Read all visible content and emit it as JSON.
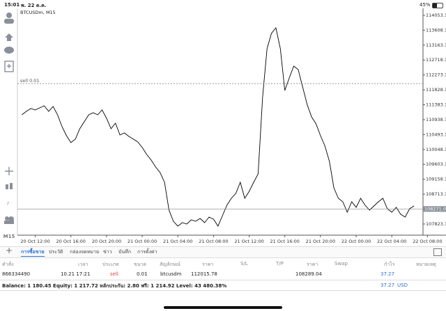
{
  "status_bar": {
    "time": "15:01",
    "date": "พ. 22 ต.ค.",
    "battery": "45%"
  },
  "toolbar": {
    "timeframe": "M15"
  },
  "chart": {
    "type": "line",
    "title": "BTCUSDm, M15",
    "color": "#000000",
    "values": [
      111083,
      111187,
      111270,
      111228,
      111291,
      111353,
      111187,
      111332,
      111083,
      110730,
      110460,
      110252,
      110356,
      110667,
      110875,
      111083,
      111145,
      111083,
      111228,
      110979,
      110667,
      110834,
      110481,
      110543,
      110439,
      110356,
      110273,
      110107,
      109899,
      109733,
      109525,
      109359,
      109068,
      108237,
      107905,
      107760,
      107864,
      107822,
      107947,
      107905,
      107988,
      107864,
      108030,
      107967,
      107760,
      108071,
      108383,
      108590,
      108736,
      109068,
      108590,
      108798,
      109068,
      109317,
      111602,
      113056,
      113513,
      113679,
      113056,
      111810,
      112184,
      112537,
      112433,
      111914,
      111394,
      111021,
      110813,
      110460,
      110148,
      109691,
      108902,
      108590,
      108487,
      108175,
      108487,
      108320,
      108590,
      108383,
      108237,
      108362,
      108487,
      108590,
      108279,
      108175,
      108320,
      108113,
      108030,
      108279,
      108362
    ],
    "xlim": [
      -1,
      90
    ],
    "ylim": [
      107490,
      114260
    ],
    "xticks": [
      {
        "value": 3,
        "label": "20 Oct 12:00"
      },
      {
        "value": 11,
        "label": "20 Oct 16:00"
      },
      {
        "value": 19,
        "label": "20 Oct 20:00"
      },
      {
        "value": 27,
        "label": "21 Oct 00:00"
      },
      {
        "value": 35,
        "label": "21 Oct 04:00"
      },
      {
        "value": 43,
        "label": "21 Oct 08:00"
      },
      {
        "value": 51,
        "label": "21 Oct 12:00"
      },
      {
        "value": 59,
        "label": "21 Oct 16:00"
      },
      {
        "value": 67,
        "label": "21 Oct 20:00"
      },
      {
        "value": 75,
        "label": "22 Oct 00:00"
      },
      {
        "value": 83,
        "label": "22 Oct 04:00"
      },
      {
        "value": 91,
        "label": "22 Oct 08:00"
      }
    ],
    "yticks": [
      {
        "value": 114053.1,
        "label": "114053.10"
      },
      {
        "value": 113608.1,
        "label": "113608.10"
      },
      {
        "value": 113163.1,
        "label": "113163.10"
      },
      {
        "value": 112718.1,
        "label": "112718.10"
      },
      {
        "value": 112273.1,
        "label": "112273.10"
      },
      {
        "value": 111828.1,
        "label": "111828.10"
      },
      {
        "value": 111383.1,
        "label": "111383.10"
      },
      {
        "value": 110938.1,
        "label": "110938.10"
      },
      {
        "value": 110493.1,
        "label": "110493.10"
      },
      {
        "value": 110048.1,
        "label": "110048.10"
      },
      {
        "value": 109603.1,
        "label": "109603.10"
      },
      {
        "value": 109158.1,
        "label": "109158.10"
      },
      {
        "value": 108713.1,
        "label": "108713.10"
      },
      {
        "value": 107823.1,
        "label": "107823.10"
      }
    ],
    "order_line_label": "sell 0.01",
    "current_price": 108271.04
  },
  "tabs": [
    "การซื้อขาย",
    "ประวัติ",
    "กล่องจดหมาย",
    "ข่าว",
    "บันทึก",
    "การตั้งค่า"
  ],
  "table": {
    "columns": [
      "คำสั่ง",
      "เวลา",
      "ประเภท",
      "ขนาด",
      "สัญลักษณ์",
      "ราคา",
      "S/L",
      "T/P",
      "ราคา",
      "Swap",
      "กำไร",
      "หมายเหตุ"
    ],
    "orders": [
      {
        "ticket": "866334490",
        "time": "10.21 17:21",
        "type": "sell",
        "volume": 0.01,
        "symbol": "btcusdm",
        "price": 112015.78,
        "current_price": 108289.04,
        "profit": 37.27
      }
    ]
  },
  "summary": {
    "text": "Balance: 1 180.45 Equity: 1 217.72 หลักประกัน: 2.80 ฟรี: 1 214.92 Level: 43 480.38%",
    "profit": 37.27,
    "currency": "USD"
  }
}
